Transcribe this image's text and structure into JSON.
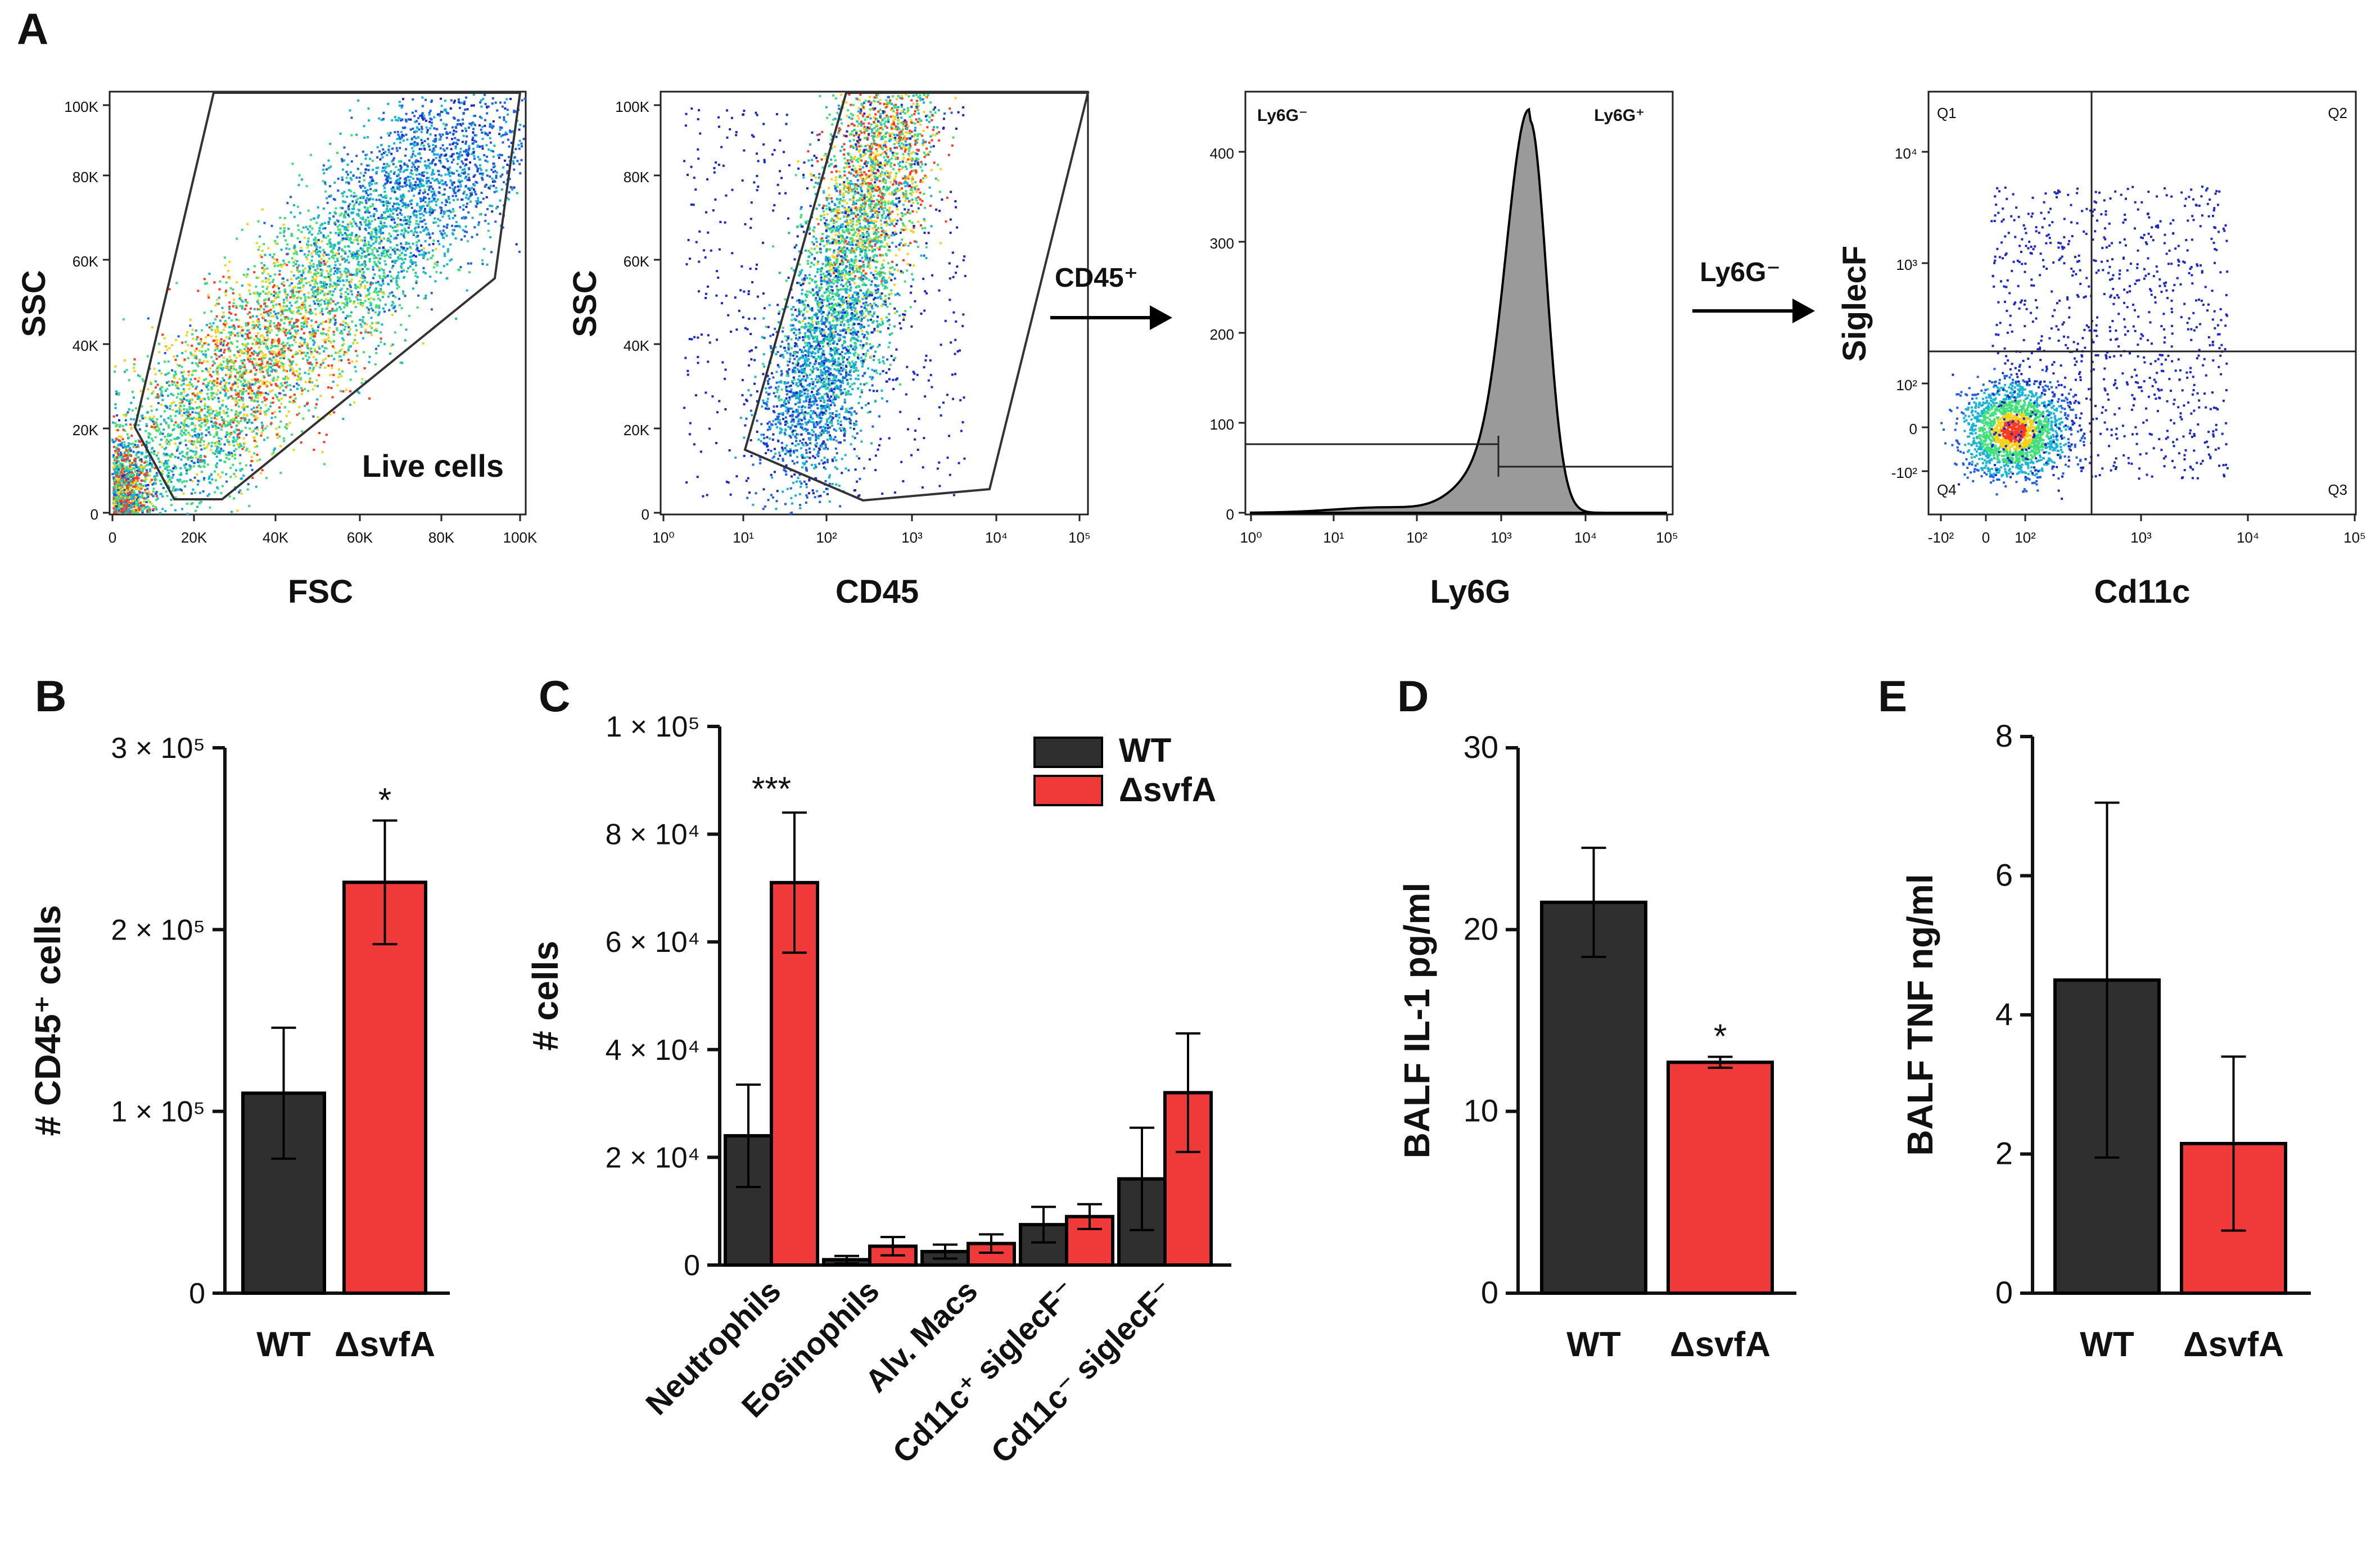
{
  "colors": {
    "wt": "#2f2f2f",
    "mut": "#f03a3a",
    "axis": "#222222",
    "hist": "#9a9a9a"
  },
  "flow": {
    "panel_label": "A",
    "plot1": {
      "xlabel": "FSC",
      "ylabel": "SSC",
      "gate_label": "Live cells",
      "xticks": [
        "0",
        "20K",
        "40K",
        "60K",
        "80K",
        "100K"
      ],
      "yticks": [
        "0",
        "20K",
        "40K",
        "60K",
        "80K",
        "100K"
      ]
    },
    "plot2": {
      "xlabel": "CD45",
      "ylabel": "SSC",
      "xticks": [
        "10⁰",
        "10¹",
        "10²",
        "10³",
        "10⁴",
        "10⁵"
      ],
      "yticks": [
        "0",
        "20K",
        "40K",
        "60K",
        "80K",
        "100K"
      ]
    },
    "arrow1_label": "CD45⁺",
    "plot3": {
      "xlabel": "Ly6G",
      "neg_label": "Ly6G⁻",
      "pos_label": "Ly6G⁺",
      "xticks": [
        "10⁰",
        "10¹",
        "10²",
        "10³",
        "10⁴",
        "10⁵"
      ],
      "yticks": [
        "0",
        "100",
        "200",
        "300",
        "400"
      ]
    },
    "arrow2_label": "Ly6G⁻",
    "plot4": {
      "xlabel": "Cd11c",
      "ylabel": "SiglecF",
      "quadrants": [
        "Q1",
        "Q2",
        "Q3",
        "Q4"
      ],
      "xticks": [
        "-10²",
        "0",
        "10²",
        "10³",
        "10⁴",
        "10⁵"
      ],
      "yticks": [
        "-10²",
        "0",
        "10²",
        "10³",
        "10⁴"
      ]
    }
  },
  "chart_data": [
    {
      "panel": "B",
      "type": "bar",
      "ylabel": "# CD45⁺ cells",
      "categories": [
        "WT",
        "ΔsvfA"
      ],
      "values": [
        110000,
        226000
      ],
      "errors": [
        36000,
        34000
      ],
      "ylim": [
        0,
        300000
      ],
      "yticks": [
        0,
        100000,
        200000,
        300000
      ],
      "ytick_labels": [
        "0",
        "1 × 10⁵",
        "2 × 10⁵",
        "3 × 10⁵"
      ],
      "annotations": [
        "",
        "*"
      ]
    },
    {
      "panel": "C",
      "type": "bar",
      "ylabel": "# cells",
      "categories": [
        "Neutrophils",
        "Eosinophils",
        "Alv. Macs",
        "Cd11c⁺ siglecF⁻",
        "Cd11c⁻ siglecF⁻"
      ],
      "series": [
        {
          "name": "WT",
          "values": [
            24000,
            1000,
            2500,
            7500,
            16000
          ],
          "errors": [
            9500,
            700,
            1300,
            3300,
            9500
          ]
        },
        {
          "name": "ΔsvfA",
          "values": [
            71000,
            3500,
            4000,
            9000,
            32000
          ],
          "errors": [
            13000,
            1700,
            1700,
            2300,
            11000
          ]
        }
      ],
      "ylim": [
        0,
        100000
      ],
      "yticks": [
        0,
        20000,
        40000,
        60000,
        80000,
        100000
      ],
      "ytick_labels": [
        "0",
        "2 × 10⁴",
        "4 × 10⁴",
        "6 × 10⁴",
        "8 × 10⁴",
        "1 × 10⁵"
      ],
      "annotations": [
        "***",
        "",
        "",
        "",
        ""
      ]
    },
    {
      "panel": "D",
      "type": "bar",
      "ylabel": "BALF IL-1 pg/ml",
      "categories": [
        "WT",
        "ΔsvfA"
      ],
      "values": [
        21.5,
        12.7
      ],
      "errors": [
        3.0,
        0.3
      ],
      "ylim": [
        0,
        30
      ],
      "yticks": [
        0,
        10,
        20,
        30
      ],
      "ytick_labels": [
        "0",
        "10",
        "20",
        "30"
      ],
      "annotations": [
        "",
        "*"
      ]
    },
    {
      "panel": "E",
      "type": "bar",
      "ylabel": "BALF TNF ng/ml",
      "categories": [
        "WT",
        "ΔsvfA"
      ],
      "values": [
        4.5,
        2.15
      ],
      "errors": [
        2.55,
        1.25
      ],
      "ylim": [
        0,
        8
      ],
      "yticks": [
        0,
        2,
        4,
        6,
        8
      ],
      "ytick_labels": [
        "0",
        "2",
        "4",
        "6",
        "8"
      ],
      "annotations": [
        "",
        ""
      ]
    }
  ]
}
